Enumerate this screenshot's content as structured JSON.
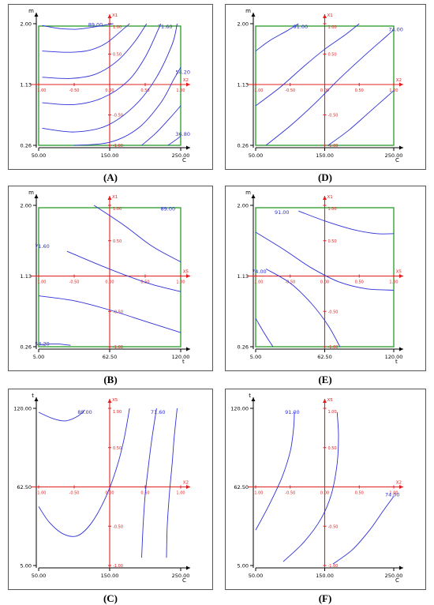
{
  "chart_data": [
    {
      "id": "A",
      "type": "contour",
      "caption": "(A)",
      "xlabel": "C",
      "ylabel": "m",
      "x_ticks": [
        "50.00",
        "150.00",
        "250.00"
      ],
      "y_ticks": [
        "0.26",
        "1.13",
        "2.00"
      ],
      "coded_h_label": "X2",
      "coded_v_label": "X1",
      "coded_h_ticks": [
        "-1.00",
        "-0.50",
        "0.00",
        "0.50",
        "1.00"
      ],
      "coded_v_ticks": [
        "1.00",
        "0.50",
        "0.00",
        "-0.50",
        "-1.00"
      ],
      "has_frame": true,
      "contours": [
        {
          "label": "89.00",
          "label_pos": [
            -0.2,
            0.98
          ],
          "points": [
            [
              -0.95,
              0.97
            ],
            [
              -0.7,
              0.92
            ],
            [
              -0.45,
              0.91
            ],
            [
              -0.2,
              0.95
            ],
            [
              0.05,
              1.0
            ]
          ]
        },
        {
          "points": [
            [
              -0.95,
              0.55
            ],
            [
              -0.6,
              0.53
            ],
            [
              -0.3,
              0.56
            ],
            [
              -0.05,
              0.68
            ],
            [
              0.2,
              0.92
            ],
            [
              0.28,
              1.0
            ]
          ]
        },
        {
          "points": [
            [
              -0.95,
              0.12
            ],
            [
              -0.55,
              0.1
            ],
            [
              -0.2,
              0.17
            ],
            [
              0.1,
              0.38
            ],
            [
              0.35,
              0.7
            ],
            [
              0.52,
              1.0
            ]
          ]
        },
        {
          "label": "71.60",
          "label_pos": [
            0.78,
            0.95
          ],
          "points": [
            [
              -0.95,
              -0.3
            ],
            [
              -0.5,
              -0.33
            ],
            [
              -0.1,
              -0.22
            ],
            [
              0.25,
              0.05
            ],
            [
              0.5,
              0.45
            ],
            [
              0.72,
              1.0
            ]
          ]
        },
        {
          "points": [
            [
              -0.95,
              -0.72
            ],
            [
              -0.5,
              -0.78
            ],
            [
              -0.05,
              -0.68
            ],
            [
              0.35,
              -0.35
            ],
            [
              0.65,
              0.1
            ],
            [
              0.88,
              0.66
            ],
            [
              0.95,
              1.0
            ]
          ]
        },
        {
          "label": "54.20",
          "label_pos": [
            1.03,
            0.2
          ],
          "points": [
            [
              -0.5,
              -1.0
            ],
            [
              0.0,
              -0.95
            ],
            [
              0.4,
              -0.72
            ],
            [
              0.72,
              -0.3
            ],
            [
              0.9,
              0.08
            ],
            [
              1.0,
              0.28
            ]
          ]
        },
        {
          "points": [
            [
              0.45,
              -1.0
            ],
            [
              0.65,
              -0.8
            ],
            [
              0.85,
              -0.55
            ],
            [
              1.0,
              -0.35
            ]
          ]
        },
        {
          "label": "36.80",
          "label_pos": [
            1.03,
            -0.82
          ],
          "points": [
            [
              0.82,
              -1.0
            ],
            [
              0.92,
              -0.92
            ],
            [
              1.0,
              -0.85
            ]
          ]
        }
      ]
    },
    {
      "id": "D",
      "type": "contour",
      "caption": "(D)",
      "xlabel": "C",
      "ylabel": "m",
      "x_ticks": [
        "50.00",
        "150.00",
        "250.00"
      ],
      "y_ticks": [
        "0.26",
        "1.13",
        "2.00"
      ],
      "coded_h_label": "X2",
      "coded_v_label": "X1",
      "coded_h_ticks": [
        "-1.00",
        "-0.50",
        "0.00",
        "0.50",
        "1.00"
      ],
      "coded_v_ticks": [
        "1.00",
        "0.50",
        "0.00",
        "-0.50",
        "-1.00"
      ],
      "has_frame": true,
      "contours": [
        {
          "label": "91.00",
          "label_pos": [
            -0.35,
            0.95
          ],
          "points": [
            [
              -1.0,
              0.55
            ],
            [
              -0.8,
              0.72
            ],
            [
              -0.55,
              0.88
            ],
            [
              -0.38,
              1.0
            ]
          ]
        },
        {
          "points": [
            [
              -1.0,
              -0.35
            ],
            [
              -0.65,
              -0.05
            ],
            [
              -0.3,
              0.3
            ],
            [
              0.0,
              0.58
            ],
            [
              0.3,
              0.82
            ],
            [
              0.5,
              1.0
            ]
          ]
        },
        {
          "label": "74.00",
          "label_pos": [
            1.03,
            0.9
          ],
          "points": [
            [
              -0.85,
              -1.0
            ],
            [
              -0.5,
              -0.68
            ],
            [
              -0.15,
              -0.32
            ],
            [
              0.2,
              0.08
            ],
            [
              0.55,
              0.45
            ],
            [
              0.9,
              0.8
            ],
            [
              1.0,
              0.9
            ]
          ]
        },
        {
          "points": [
            [
              0.05,
              -1.0
            ],
            [
              0.35,
              -0.75
            ],
            [
              0.65,
              -0.45
            ],
            [
              1.0,
              -0.1
            ]
          ]
        }
      ]
    },
    {
      "id": "B",
      "type": "contour",
      "caption": "(B)",
      "xlabel": "t",
      "ylabel": "m",
      "x_ticks": [
        "5.00",
        "62.50",
        "120.00"
      ],
      "y_ticks": [
        "0.26",
        "1.13",
        "2.00"
      ],
      "coded_h_label": "X5",
      "coded_v_label": "X1",
      "coded_h_ticks": [
        "-1.00",
        "-0.50",
        "0.00",
        "0.50",
        "1.00"
      ],
      "coded_v_ticks": [
        "1.00",
        "0.50",
        "0.00",
        "-0.50",
        "-1.00"
      ],
      "has_frame": true,
      "contours": [
        {
          "label": "89.00",
          "label_pos": [
            0.82,
            0.95
          ],
          "points": [
            [
              -0.22,
              1.0
            ],
            [
              0.2,
              0.72
            ],
            [
              0.6,
              0.42
            ],
            [
              1.0,
              0.2
            ]
          ]
        },
        {
          "label": "71.60",
          "label_pos": [
            -0.95,
            0.42
          ],
          "points": [
            [
              -0.6,
              0.35
            ],
            [
              -0.2,
              0.18
            ],
            [
              0.2,
              0.02
            ],
            [
              0.6,
              -0.12
            ],
            [
              1.0,
              -0.22
            ]
          ]
        },
        {
          "points": [
            [
              -1.0,
              -0.28
            ],
            [
              -0.5,
              -0.35
            ],
            [
              0.0,
              -0.48
            ],
            [
              0.5,
              -0.64
            ],
            [
              1.0,
              -0.8
            ]
          ]
        },
        {
          "label": "54.20",
          "label_pos": [
            -0.95,
            -0.96
          ],
          "points": [
            [
              -1.0,
              -0.97
            ],
            [
              -0.75,
              -0.96
            ],
            [
              -0.55,
              -0.98
            ]
          ]
        }
      ]
    },
    {
      "id": "E",
      "type": "contour",
      "caption": "(E)",
      "xlabel": "t",
      "ylabel": "m",
      "x_ticks": [
        "5.00",
        "62.50",
        "120.00"
      ],
      "y_ticks": [
        "0.26",
        "1.13",
        "2.00"
      ],
      "coded_h_label": "X5",
      "coded_v_label": "X1",
      "coded_h_ticks": [
        "-1.00",
        "-0.50",
        "0.00",
        "0.50",
        "1.00"
      ],
      "coded_v_ticks": [
        "1.00",
        "0.50",
        "0.00",
        "-0.50",
        "-1.00"
      ],
      "has_frame": true,
      "contours": [
        {
          "label": "91.00",
          "label_pos": [
            -0.62,
            0.9
          ],
          "points": [
            [
              -0.38,
              0.92
            ],
            [
              0.0,
              0.78
            ],
            [
              0.4,
              0.66
            ],
            [
              0.75,
              0.6
            ],
            [
              1.0,
              0.6
            ]
          ]
        },
        {
          "points": [
            [
              -1.0,
              0.62
            ],
            [
              -0.6,
              0.38
            ],
            [
              -0.2,
              0.12
            ],
            [
              0.2,
              -0.08
            ],
            [
              0.6,
              -0.18
            ],
            [
              1.0,
              -0.2
            ]
          ]
        },
        {
          "label": "74.00",
          "label_pos": [
            -0.95,
            0.06
          ],
          "points": [
            [
              -0.85,
              0.1
            ],
            [
              -0.5,
              -0.1
            ],
            [
              -0.2,
              -0.38
            ],
            [
              0.05,
              -0.7
            ],
            [
              0.22,
              -1.0
            ]
          ]
        },
        {
          "points": [
            [
              -1.0,
              -0.6
            ],
            [
              -0.88,
              -0.8
            ],
            [
              -0.75,
              -1.0
            ]
          ]
        }
      ]
    },
    {
      "id": "C",
      "type": "contour",
      "caption": "(C)",
      "xlabel": "C",
      "ylabel": "t",
      "x_ticks": [
        "50.00",
        "150.00",
        "250.00"
      ],
      "y_ticks": [
        "5.00",
        "62.50",
        "120.00"
      ],
      "coded_h_label": "X2",
      "coded_v_label": "X5",
      "coded_h_ticks": [
        "-1.00",
        "-0.50",
        "0.00",
        "0.50",
        "1.00"
      ],
      "coded_v_ticks": [
        "1.00",
        "0.50",
        "0.00",
        "-0.50",
        "-1.00"
      ],
      "has_frame": false,
      "contours": [
        {
          "label": "89.00",
          "label_pos": [
            -0.35,
            0.95
          ],
          "points": [
            [
              -1.0,
              0.95
            ],
            [
              -0.8,
              0.87
            ],
            [
              -0.62,
              0.84
            ],
            [
              -0.45,
              0.9
            ],
            [
              -0.35,
              0.98
            ]
          ]
        },
        {
          "points": [
            [
              -1.0,
              -0.25
            ],
            [
              -0.85,
              -0.45
            ],
            [
              -0.65,
              -0.6
            ],
            [
              -0.45,
              -0.62
            ],
            [
              -0.25,
              -0.45
            ],
            [
              -0.05,
              -0.12
            ],
            [
              0.1,
              0.25
            ],
            [
              0.2,
              0.6
            ],
            [
              0.28,
              1.0
            ]
          ]
        },
        {
          "label": "71.60",
          "label_pos": [
            0.68,
            0.95
          ],
          "points": [
            [
              0.45,
              -0.9
            ],
            [
              0.47,
              -0.5
            ],
            [
              0.5,
              -0.1
            ],
            [
              0.55,
              0.3
            ],
            [
              0.6,
              0.65
            ],
            [
              0.66,
              1.0
            ]
          ]
        },
        {
          "points": [
            [
              0.8,
              -0.9
            ],
            [
              0.81,
              -0.5
            ],
            [
              0.84,
              -0.1
            ],
            [
              0.88,
              0.3
            ],
            [
              0.91,
              0.65
            ],
            [
              0.95,
              1.0
            ]
          ]
        }
      ]
    },
    {
      "id": "F",
      "type": "contour",
      "caption": "(F)",
      "xlabel": "C",
      "ylabel": "t",
      "x_ticks": [
        "50.00",
        "150.00",
        "250.00"
      ],
      "y_ticks": [
        "5.00",
        "62.50",
        "120.00"
      ],
      "coded_h_label": "X2",
      "coded_v_label": "X5",
      "coded_h_ticks": [
        "-1.00",
        "-0.50",
        "0.00",
        "0.50",
        "1.00"
      ],
      "coded_v_ticks": [
        "1.00",
        "0.50",
        "0.00",
        "-0.50",
        "-1.00"
      ],
      "has_frame": false,
      "contours": [
        {
          "label": "91.00",
          "label_pos": [
            -0.47,
            0.95
          ],
          "points": [
            [
              -1.0,
              -0.55
            ],
            [
              -0.8,
              -0.22
            ],
            [
              -0.62,
              0.12
            ],
            [
              -0.5,
              0.45
            ],
            [
              -0.45,
              0.75
            ],
            [
              -0.44,
              0.95
            ]
          ]
        },
        {
          "points": [
            [
              -0.6,
              -0.95
            ],
            [
              -0.3,
              -0.7
            ],
            [
              -0.05,
              -0.4
            ],
            [
              0.1,
              -0.08
            ],
            [
              0.18,
              0.3
            ],
            [
              0.2,
              0.65
            ],
            [
              0.18,
              0.95
            ]
          ]
        },
        {
          "label": "74.00",
          "label_pos": [
            0.98,
            -0.1
          ],
          "points": [
            [
              0.12,
              -0.98
            ],
            [
              0.4,
              -0.8
            ],
            [
              0.65,
              -0.55
            ],
            [
              0.85,
              -0.3
            ],
            [
              1.0,
              -0.12
            ]
          ]
        }
      ]
    }
  ]
}
